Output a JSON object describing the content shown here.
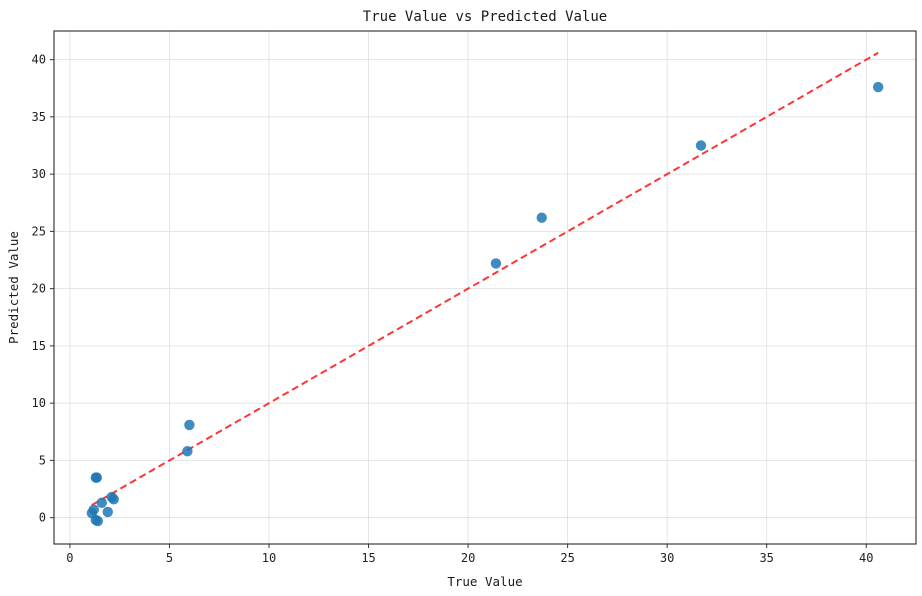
{
  "chart_data": {
    "type": "scatter",
    "title": "True Value vs Predicted Value",
    "xlabel": "True Value",
    "ylabel": "Predicted Value",
    "xlim": [
      -0.8,
      42.5
    ],
    "ylim": [
      -2.3,
      42.5
    ],
    "xticks": [
      0,
      5,
      10,
      15,
      20,
      25,
      30,
      35,
      40
    ],
    "yticks": [
      0,
      5,
      10,
      15,
      20,
      25,
      30,
      35,
      40
    ],
    "grid": true,
    "series": [
      {
        "color": "#1f77b4",
        "points": [
          {
            "x": 1.1,
            "y": 0.4
          },
          {
            "x": 1.2,
            "y": 0.7
          },
          {
            "x": 1.3,
            "y": -0.2
          },
          {
            "x": 1.4,
            "y": -0.3
          },
          {
            "x": 1.3,
            "y": 3.5
          },
          {
            "x": 1.35,
            "y": 3.5
          },
          {
            "x": 1.6,
            "y": 1.3
          },
          {
            "x": 1.9,
            "y": 0.5
          },
          {
            "x": 2.1,
            "y": 1.8
          },
          {
            "x": 2.2,
            "y": 1.6
          },
          {
            "x": 5.9,
            "y": 5.8
          },
          {
            "x": 6.0,
            "y": 8.1
          },
          {
            "x": 21.4,
            "y": 22.2
          },
          {
            "x": 23.7,
            "y": 26.2
          },
          {
            "x": 31.7,
            "y": 32.5
          },
          {
            "x": 40.6,
            "y": 37.6
          }
        ]
      }
    ],
    "reference_line": {
      "style": "dashed",
      "color": "#ff1f1f",
      "x": [
        1.1,
        40.6
      ],
      "y": [
        1.1,
        40.6
      ]
    }
  }
}
